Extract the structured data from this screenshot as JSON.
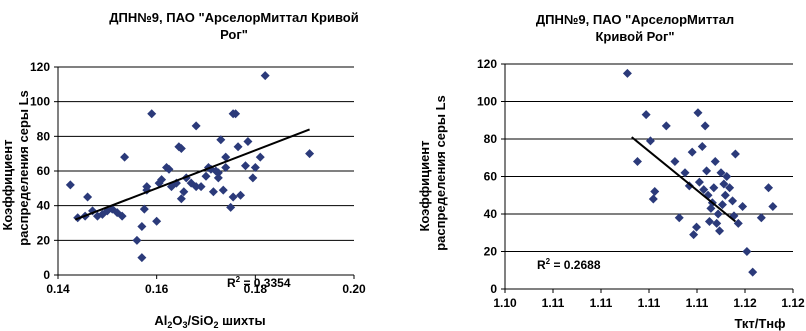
{
  "chart_data": [
    {
      "type": "scatter",
      "title_lines": [
        "ДПН№9, ПАО \"АрселорМиттал Кривой",
        "Рог\""
      ],
      "ylabel_lines": [
        "Коэффициент",
        "распределения серы Ls"
      ],
      "xlabel": {
        "base1": "Al",
        "sub1": "2",
        "base2": "O",
        "sub2": "3",
        "base3": "/SiO",
        "sub3": "2",
        "base4": " шихты"
      },
      "xlim": [
        0.14,
        0.2
      ],
      "ylim": [
        0,
        120
      ],
      "xticks": [
        "0.14",
        "0.16",
        "0.18",
        "0.20"
      ],
      "yticks": [
        "0",
        "20",
        "40",
        "60",
        "80",
        "100",
        "120"
      ],
      "grid": "horizontal",
      "marker_color": "#2b3a7a",
      "r2": {
        "prefix": "R",
        "sup": "2",
        "value": " = 0.3354"
      },
      "trendline": {
        "x": [
          0.1435,
          0.191
        ],
        "y": [
          32,
          84
        ]
      },
      "points": [
        [
          0.1425,
          52
        ],
        [
          0.144,
          33
        ],
        [
          0.1455,
          34
        ],
        [
          0.146,
          45
        ],
        [
          0.147,
          37
        ],
        [
          0.148,
          34
        ],
        [
          0.149,
          35
        ],
        [
          0.15,
          37
        ],
        [
          0.151,
          38
        ],
        [
          0.152,
          36
        ],
        [
          0.153,
          34
        ],
        [
          0.1535,
          68
        ],
        [
          0.156,
          20
        ],
        [
          0.157,
          10
        ],
        [
          0.157,
          28
        ],
        [
          0.1575,
          38
        ],
        [
          0.158,
          49
        ],
        [
          0.158,
          51
        ],
        [
          0.159,
          93
        ],
        [
          0.16,
          31
        ],
        [
          0.1605,
          53
        ],
        [
          0.161,
          55
        ],
        [
          0.162,
          62
        ],
        [
          0.1625,
          61
        ],
        [
          0.163,
          51
        ],
        [
          0.164,
          53
        ],
        [
          0.1645,
          74
        ],
        [
          0.165,
          73
        ],
        [
          0.165,
          44
        ],
        [
          0.1655,
          48
        ],
        [
          0.166,
          56
        ],
        [
          0.167,
          53
        ],
        [
          0.168,
          51
        ],
        [
          0.168,
          86
        ],
        [
          0.169,
          51
        ],
        [
          0.17,
          57
        ],
        [
          0.1705,
          62
        ],
        [
          0.171,
          61
        ],
        [
          0.1715,
          48
        ],
        [
          0.172,
          60
        ],
        [
          0.1725,
          59
        ],
        [
          0.1725,
          56
        ],
        [
          0.173,
          78
        ],
        [
          0.1735,
          49
        ],
        [
          0.174,
          62
        ],
        [
          0.174,
          68
        ],
        [
          0.175,
          39
        ],
        [
          0.1755,
          45
        ],
        [
          0.1755,
          93
        ],
        [
          0.176,
          93
        ],
        [
          0.1765,
          74
        ],
        [
          0.177,
          46
        ],
        [
          0.178,
          63
        ],
        [
          0.1785,
          77
        ],
        [
          0.1795,
          56
        ],
        [
          0.18,
          62
        ],
        [
          0.181,
          68
        ],
        [
          0.182,
          115
        ],
        [
          0.191,
          70
        ]
      ]
    },
    {
      "type": "scatter",
      "title_lines": [
        "ДПН№9, ПАО \"АрселорМиттал",
        "Кривой Рог\""
      ],
      "ylabel_lines": [
        "Коэффициент",
        "распределения серы Ls"
      ],
      "xlabel_text": "Ткт/Тнф",
      "xlim": [
        1.1,
        1.12
      ],
      "ylim": [
        0,
        120
      ],
      "xticks": [
        "1.10",
        "1.11",
        "1.11",
        "1.11",
        "1.11",
        "1.12",
        "1.12"
      ],
      "yticks": [
        "0",
        "20",
        "40",
        "60",
        "80",
        "100",
        "120"
      ],
      "grid": "horizontal",
      "marker_color": "#2b3a7a",
      "r2": {
        "prefix": "R",
        "sup": "2",
        "value": " = 0.2688"
      },
      "trendline": {
        "x": [
          1.1088,
          1.116
        ],
        "y": [
          81,
          36
        ]
      },
      "points": [
        [
          1.1085,
          115
        ],
        [
          1.1092,
          68
        ],
        [
          1.1098,
          93
        ],
        [
          1.1101,
          79
        ],
        [
          1.1103,
          48
        ],
        [
          1.1104,
          52
        ],
        [
          1.1112,
          87
        ],
        [
          1.1118,
          68
        ],
        [
          1.1121,
          38
        ],
        [
          1.1125,
          62
        ],
        [
          1.1128,
          55
        ],
        [
          1.113,
          73
        ],
        [
          1.1131,
          29
        ],
        [
          1.1133,
          33
        ],
        [
          1.1134,
          94
        ],
        [
          1.1135,
          57
        ],
        [
          1.1137,
          76
        ],
        [
          1.1138,
          53
        ],
        [
          1.1139,
          87
        ],
        [
          1.114,
          63
        ],
        [
          1.1141,
          50
        ],
        [
          1.1142,
          36
        ],
        [
          1.1143,
          43
        ],
        [
          1.1144,
          46
        ],
        [
          1.1145,
          54
        ],
        [
          1.1146,
          68
        ],
        [
          1.1147,
          35
        ],
        [
          1.1148,
          40
        ],
        [
          1.1149,
          31
        ],
        [
          1.115,
          62
        ],
        [
          1.1151,
          45
        ],
        [
          1.1152,
          56
        ],
        [
          1.1153,
          50
        ],
        [
          1.1154,
          60
        ],
        [
          1.1156,
          54
        ],
        [
          1.1158,
          47
        ],
        [
          1.1159,
          39
        ],
        [
          1.116,
          72
        ],
        [
          1.1162,
          35
        ],
        [
          1.1165,
          44
        ],
        [
          1.1168,
          20
        ],
        [
          1.1172,
          9
        ],
        [
          1.1178,
          38
        ],
        [
          1.1183,
          54
        ],
        [
          1.1186,
          44
        ]
      ]
    }
  ]
}
